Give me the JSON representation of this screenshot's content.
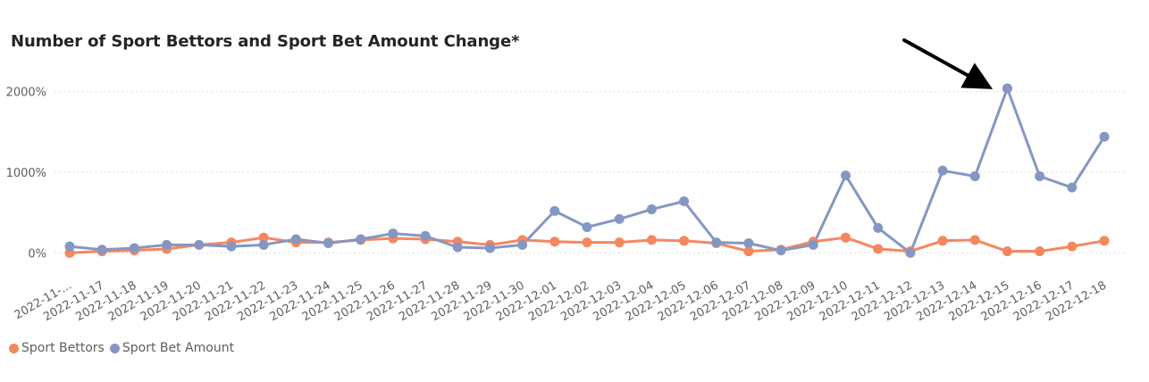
{
  "chart_data": {
    "type": "line",
    "title": "Number of Sport Bettors and Sport Bet Amount Change*",
    "xlabel": "",
    "ylabel": "",
    "categories": [
      "2022-11-...",
      "2022-11-17",
      "2022-11-18",
      "2022-11-19",
      "2022-11-20",
      "2022-11-21",
      "2022-11-22",
      "2022-11-23",
      "2022-11-24",
      "2022-11-25",
      "2022-11-26",
      "2022-11-27",
      "2022-11-28",
      "2022-11-29",
      "2022-11-30",
      "2022-12-01",
      "2022-12-02",
      "2022-12-03",
      "2022-12-04",
      "2022-12-05",
      "2022-12-06",
      "2022-12-07",
      "2022-12-08",
      "2022-12-09",
      "2022-12-10",
      "2022-12-11",
      "2022-12-12",
      "2022-12-13",
      "2022-12-14",
      "2022-12-15",
      "2022-12-16",
      "2022-12-17",
      "2022-12-18"
    ],
    "series": [
      {
        "name": "Sport Bettors",
        "color": "#F5875F",
        "values": [
          0,
          20,
          30,
          50,
          100,
          130,
          190,
          130,
          130,
          160,
          180,
          170,
          140,
          100,
          160,
          140,
          130,
          130,
          160,
          150,
          120,
          20,
          40,
          140,
          190,
          50,
          20,
          150,
          160,
          20,
          20,
          80,
          150
        ]
      },
      {
        "name": "Sport Bet Amount",
        "color": "#8497C2",
        "values": [
          80,
          40,
          60,
          100,
          100,
          80,
          100,
          170,
          120,
          170,
          240,
          210,
          70,
          60,
          100,
          520,
          320,
          420,
          540,
          640,
          130,
          120,
          30,
          100,
          960,
          310,
          0,
          1020,
          950,
          2040,
          950,
          810,
          1440
        ]
      }
    ],
    "y_ticks": [
      "0%",
      "1000%",
      "2000%"
    ],
    "y_tick_values": [
      0,
      1000,
      2000
    ],
    "ylim": [
      -350,
      2250
    ],
    "grid": true,
    "legend_position": "bottom-left",
    "annotation": "arrow pointing to the 2022-12-15 Sport Bet Amount peak"
  }
}
